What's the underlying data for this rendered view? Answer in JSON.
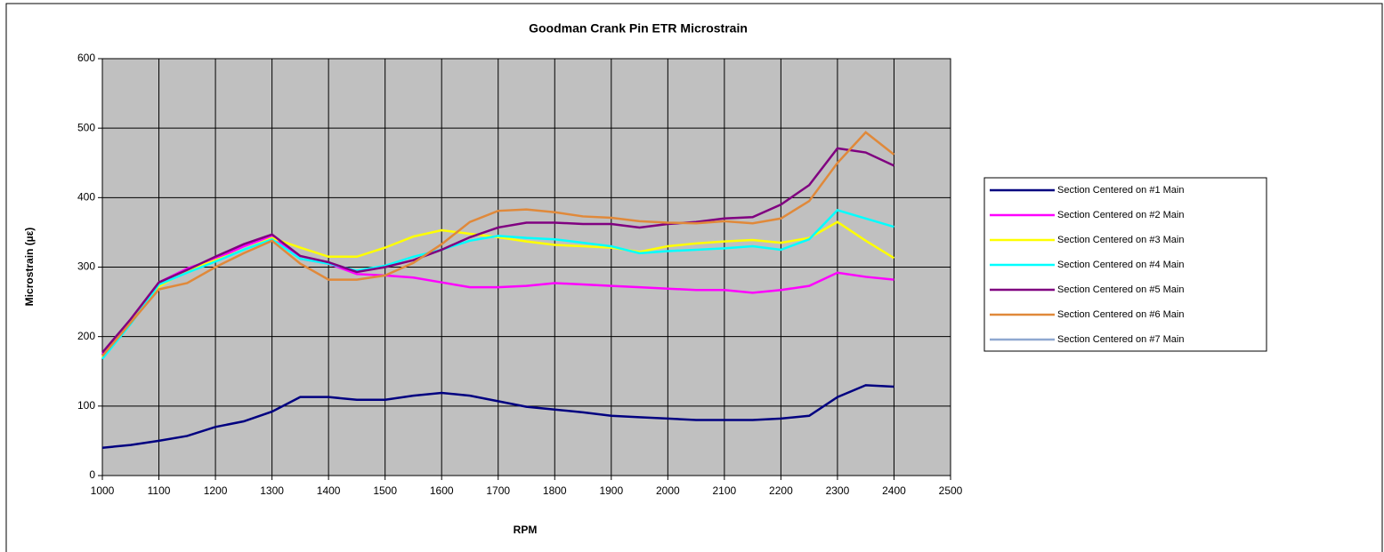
{
  "chart_data": {
    "type": "line",
    "title": "Goodman Crank Pin ETR Microstrain",
    "x_label": "RPM",
    "y_label": "Microstrain (µε)",
    "x": [
      1000,
      1050,
      1100,
      1150,
      1200,
      1250,
      1300,
      1350,
      1400,
      1450,
      1500,
      1550,
      1600,
      1650,
      1700,
      1750,
      1800,
      1850,
      1900,
      1950,
      2000,
      2050,
      2100,
      2150,
      2200,
      2250,
      2300,
      2350,
      2400
    ],
    "series": [
      {
        "name": "Section Centered on #1 Main",
        "color": "#000080",
        "values": [
          40,
          44,
          50,
          57,
          70,
          78,
          92,
          113,
          113,
          109,
          109,
          115,
          119,
          115,
          107,
          99,
          95,
          91,
          86,
          84,
          82,
          80,
          80,
          80,
          82,
          86,
          113,
          130,
          128
        ]
      },
      {
        "name": "Section Centered on #2 Main",
        "color": "#ff00ff",
        "values": [
          175,
          225,
          278,
          298,
          312,
          330,
          345,
          312,
          305,
          290,
          288,
          285,
          278,
          271,
          271,
          273,
          277,
          275,
          273,
          271,
          269,
          267,
          267,
          263,
          267,
          273,
          292,
          286,
          282
        ]
      },
      {
        "name": "Section Centered on #3 Main",
        "color": "#ffff00",
        "values": [
          170,
          220,
          272,
          295,
          310,
          325,
          342,
          328,
          315,
          315,
          328,
          344,
          353,
          348,
          343,
          337,
          332,
          330,
          328,
          322,
          330,
          334,
          337,
          339,
          335,
          342,
          365,
          338,
          313
        ]
      },
      {
        "name": "Section Centered on #4 Main",
        "color": "#00ffff",
        "values": [
          168,
          218,
          275,
          292,
          308,
          325,
          340,
          312,
          305,
          295,
          302,
          315,
          325,
          338,
          345,
          342,
          340,
          335,
          330,
          320,
          323,
          325,
          327,
          330,
          325,
          340,
          382,
          370,
          358
        ]
      },
      {
        "name": "Section Centered on #5 Main",
        "color": "#800080",
        "values": [
          177,
          225,
          278,
          296,
          315,
          333,
          347,
          316,
          307,
          293,
          300,
          310,
          325,
          343,
          357,
          364,
          364,
          362,
          362,
          357,
          362,
          365,
          370,
          372,
          390,
          418,
          471,
          465,
          446
        ]
      },
      {
        "name": "Section Centered on #6 Main",
        "color": "#e0893a",
        "values": [
          172,
          220,
          268,
          277,
          300,
          320,
          338,
          305,
          282,
          282,
          288,
          306,
          333,
          365,
          381,
          383,
          379,
          373,
          371,
          366,
          364,
          363,
          366,
          363,
          370,
          395,
          450,
          494,
          462
        ]
      },
      {
        "name": "Section Centered on #7 Main",
        "color": "#8fa8d0",
        "values": [
          null,
          null,
          null,
          null,
          null,
          null,
          null,
          null,
          null,
          null,
          null,
          null,
          null,
          null,
          null,
          null,
          null,
          null,
          null,
          null,
          null,
          null,
          null,
          null,
          null,
          null,
          null,
          null,
          null
        ]
      }
    ],
    "xlim": [
      1000,
      2500
    ],
    "xticks": [
      1000,
      1100,
      1200,
      1300,
      1400,
      1500,
      1600,
      1700,
      1800,
      1900,
      2000,
      2100,
      2200,
      2300,
      2400,
      2500
    ],
    "ylim": [
      0,
      600
    ],
    "yticks": [
      0,
      100,
      200,
      300,
      400,
      500,
      600
    ],
    "grid": true,
    "plot_background": "#c0c0c0",
    "legend": "right"
  }
}
